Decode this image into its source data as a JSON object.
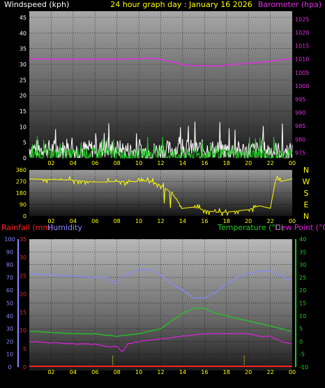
{
  "header": {
    "left_label": "Windspeed (kph)",
    "center_label": "24 hour graph day : January 16 2026",
    "right_label": "Barometer (hpa)"
  },
  "lower_header": {
    "rainfall_label": "Rainfall (mm)",
    "humidity_label": "Humidity",
    "temperature_label": "Temperature (°C)",
    "dewpoint_label": "Dew Point (°C)"
  },
  "colors": {
    "background": "#000000",
    "wind": "#ffffff",
    "gust": "#22cc22",
    "barometer": "#dd33dd",
    "direction": "#ffff00",
    "rain": "#ff2222",
    "humidity": "#8888ff",
    "temperature": "#22cc22",
    "dewpoint": "#dd22dd",
    "tick_yellow": "#ffff00"
  },
  "chart_data": [
    {
      "type": "line",
      "panel": "wind-barometer",
      "x_ticks": [
        "02",
        "04",
        "06",
        "08",
        "10",
        "12",
        "14",
        "16",
        "18",
        "20",
        "22",
        "00"
      ],
      "x_range_hours": [
        0,
        24
      ],
      "left_axis": {
        "label": "Windspeed (kph)",
        "ticks": [
          0,
          5,
          10,
          15,
          20,
          25,
          30,
          35,
          40,
          45
        ],
        "range": [
          0,
          47
        ]
      },
      "right_axis": {
        "label": "Barometer (hpa)",
        "ticks": [
          975,
          980,
          985,
          990,
          995,
          1000,
          1005,
          1010,
          1015,
          1020,
          1025
        ],
        "range": [
          973,
          1028
        ]
      },
      "series": [
        {
          "name": "Barometer (hpa)",
          "axis": "right",
          "x": [
            0,
            2,
            4,
            6,
            8,
            10,
            11,
            12,
            13,
            14,
            15,
            16,
            17,
            18,
            19,
            20,
            21,
            22,
            23,
            24
          ],
          "values": [
            1010.2,
            1010.0,
            1010.0,
            1010.0,
            1010.0,
            1010.2,
            1010.4,
            1010.0,
            1009.0,
            1008.0,
            1007.6,
            1007.6,
            1007.4,
            1007.8,
            1008.2,
            1008.4,
            1008.8,
            1009.2,
            1009.8,
            1010.2
          ]
        },
        {
          "axis": "left",
          "x": [
            0,
            2,
            4,
            6,
            8,
            10,
            12,
            14,
            16,
            18,
            20,
            22,
            24
          ],
          "values": [
            3,
            3,
            2.5,
            3,
            3,
            2,
            2.5,
            3,
            3,
            2.5,
            2.5,
            2.5,
            2
          ],
          "noise": 3
        },
        {
          "axis": "left",
          "x": [
            0,
            2,
            4,
            6,
            8,
            10,
            12,
            14,
            16,
            18,
            20,
            22,
            24
          ],
          "values": [
            1,
            1,
            1,
            1.5,
            1,
            1,
            1,
            1,
            1,
            1,
            1,
            1,
            1
          ],
          "noise": 2
        }
      ]
    },
    {
      "type": "line",
      "panel": "wind-direction",
      "x_ticks": [
        "02",
        "04",
        "06",
        "08",
        "10",
        "12",
        "14",
        "16",
        "18",
        "20",
        "22",
        "00"
      ],
      "x_range_hours": [
        0,
        24
      ],
      "left_axis": {
        "ticks": [
          0,
          90,
          180,
          270,
          360
        ],
        "range": [
          0,
          360
        ]
      },
      "right_axis_labels": [
        "N",
        "W",
        "S",
        "E",
        "N"
      ],
      "series": [
        {
          "axis": "left",
          "x": [
            0,
            2,
            4,
            6,
            8,
            10,
            11,
            12,
            12.5,
            13,
            14,
            15,
            16,
            17,
            18,
            19,
            20,
            21,
            22,
            22.5,
            23,
            24
          ],
          "values": [
            290,
            285,
            280,
            265,
            270,
            270,
            275,
            240,
            210,
            180,
            60,
            70,
            45,
            30,
            30,
            40,
            50,
            80,
            60,
            290,
            270,
            290
          ],
          "noise": 30
        }
      ]
    },
    {
      "type": "line",
      "panel": "temp-humidity-rain",
      "x_ticks": [
        "02",
        "04",
        "06",
        "08",
        "10",
        "12",
        "14",
        "16",
        "18",
        "20",
        "22",
        "00"
      ],
      "x_range_hours": [
        0,
        24
      ],
      "left_axis_humidity": {
        "label": "Humidity",
        "ticks": [
          0,
          10,
          20,
          30,
          40,
          50,
          60,
          70,
          80,
          90,
          100
        ],
        "range": [
          0,
          100
        ]
      },
      "left_axis_rain": {
        "label": "Rainfall (mm)",
        "ticks": [
          0,
          5,
          10,
          15,
          20,
          25,
          30,
          35
        ],
        "range": [
          0,
          35
        ]
      },
      "right_axis": {
        "label": "Temperature (°C)",
        "ticks": [
          -10,
          -5,
          0,
          5,
          10,
          15,
          20,
          25,
          30,
          35,
          40
        ],
        "range": [
          -10,
          40
        ]
      },
      "series": [
        {
          "name": "Humidity",
          "axis": "humidity",
          "x": [
            0,
            2,
            4,
            6,
            7,
            8,
            8.5,
            9,
            10,
            11,
            12,
            13,
            14,
            15,
            16,
            17,
            18,
            19,
            20,
            21,
            22,
            23,
            24
          ],
          "values": [
            73,
            72,
            71,
            70,
            70,
            65,
            72,
            72,
            76,
            76,
            72,
            65,
            60,
            54,
            54,
            58,
            65,
            70,
            73,
            75,
            75,
            71,
            68
          ]
        },
        {
          "name": "Temperature (°C)",
          "axis": "right",
          "x": [
            0,
            2,
            4,
            6,
            8,
            10,
            12,
            13,
            14,
            15,
            16,
            17,
            18,
            19,
            20,
            21,
            22,
            23,
            24
          ],
          "values": [
            4,
            3.5,
            3,
            3,
            2,
            3,
            5,
            8,
            11,
            13,
            13,
            11,
            10,
            9,
            8,
            7,
            6,
            5,
            4
          ]
        },
        {
          "name": "Dew Point (°C)",
          "axis": "right",
          "x": [
            0,
            2,
            4,
            6,
            7,
            8,
            8.5,
            9,
            10,
            12,
            14,
            16,
            18,
            20,
            21,
            22,
            23,
            24
          ],
          "values": [
            0,
            -0.5,
            -1,
            -1,
            -2,
            -2,
            -4,
            -1,
            0,
            1,
            2,
            3,
            3,
            3,
            2,
            2,
            0,
            -1
          ]
        },
        {
          "name": "Rainfall (mm)",
          "axis": "rain",
          "x": [
            0,
            24
          ],
          "values": [
            0,
            0
          ]
        }
      ]
    }
  ]
}
